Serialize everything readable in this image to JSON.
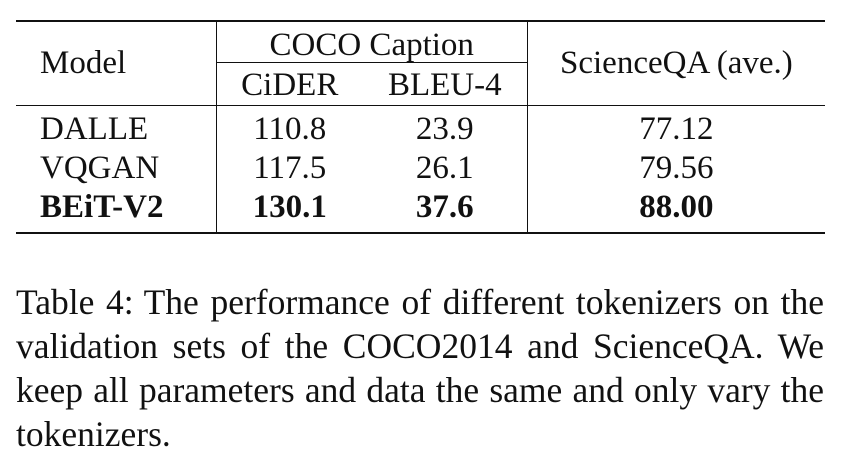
{
  "table": {
    "header": {
      "model": "Model",
      "coco_group": "COCO Caption",
      "cider": "CiDER",
      "bleu4": "BLEU-4",
      "scienceqa": "ScienceQA (ave.)"
    },
    "rows": [
      {
        "model": "DALLE",
        "cider": "110.8",
        "bleu4": "23.9",
        "scienceqa": "77.12",
        "bold": false
      },
      {
        "model": "VQGAN",
        "cider": "117.5",
        "bleu4": "26.1",
        "scienceqa": "79.56",
        "bold": false
      },
      {
        "model": "BEiT-V2",
        "cider": "130.1",
        "bleu4": "37.6",
        "scienceqa": "88.00",
        "bold": true
      }
    ]
  },
  "caption": {
    "label": "Table 4:",
    "text": "The performance of different tokenizers on the validation sets of the COCO2014 and ScienceQA. We keep all parameters and data the same and only vary the tokenizers."
  }
}
